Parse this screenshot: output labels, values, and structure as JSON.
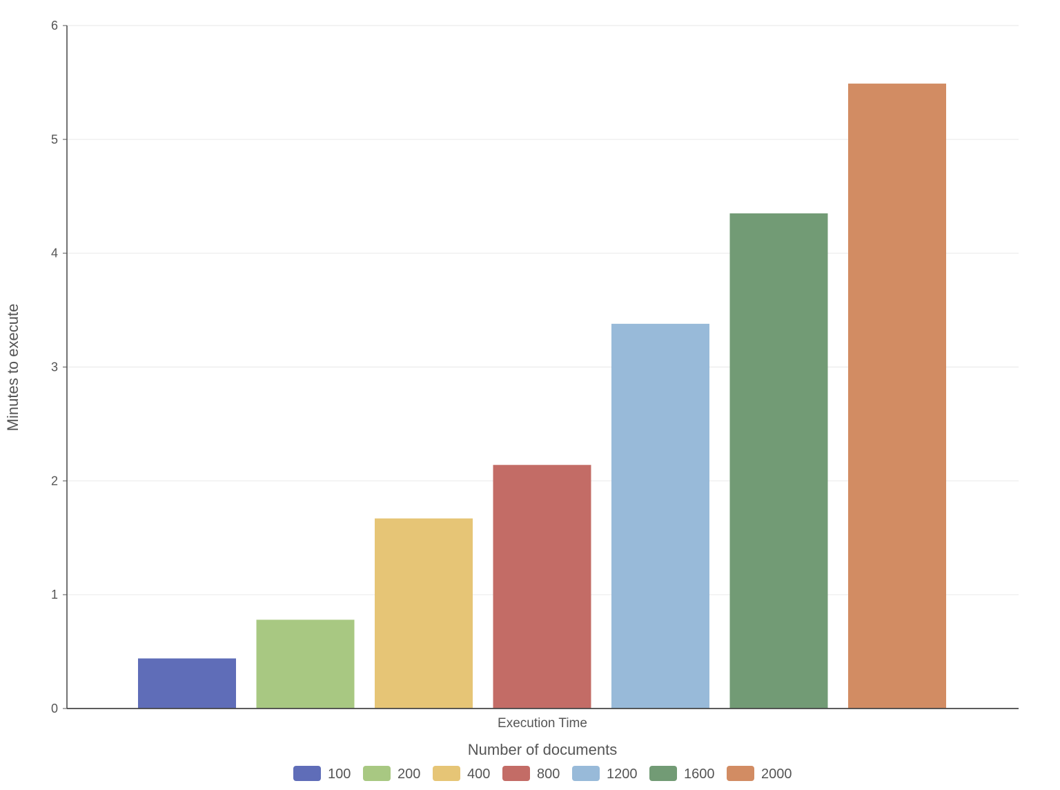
{
  "chart_data": {
    "type": "bar",
    "category_label": "Execution Time",
    "xlabel": "Number of documents",
    "ylabel": "Minutes to execute",
    "ylim": [
      0,
      6
    ],
    "yticks": [
      "0",
      "1",
      "2",
      "3",
      "4",
      "5",
      "6"
    ],
    "grid": true,
    "legend_position": "bottom",
    "series": [
      {
        "name": "100",
        "value": 0.44,
        "color": "#5f6db8"
      },
      {
        "name": "200",
        "value": 0.78,
        "color": "#a8c882"
      },
      {
        "name": "400",
        "value": 1.67,
        "color": "#e6c576"
      },
      {
        "name": "800",
        "value": 2.14,
        "color": "#c36c66"
      },
      {
        "name": "1200",
        "value": 3.38,
        "color": "#98bad9"
      },
      {
        "name": "1600",
        "value": 4.35,
        "color": "#729b75"
      },
      {
        "name": "2000",
        "value": 5.49,
        "color": "#d28c63"
      }
    ]
  }
}
